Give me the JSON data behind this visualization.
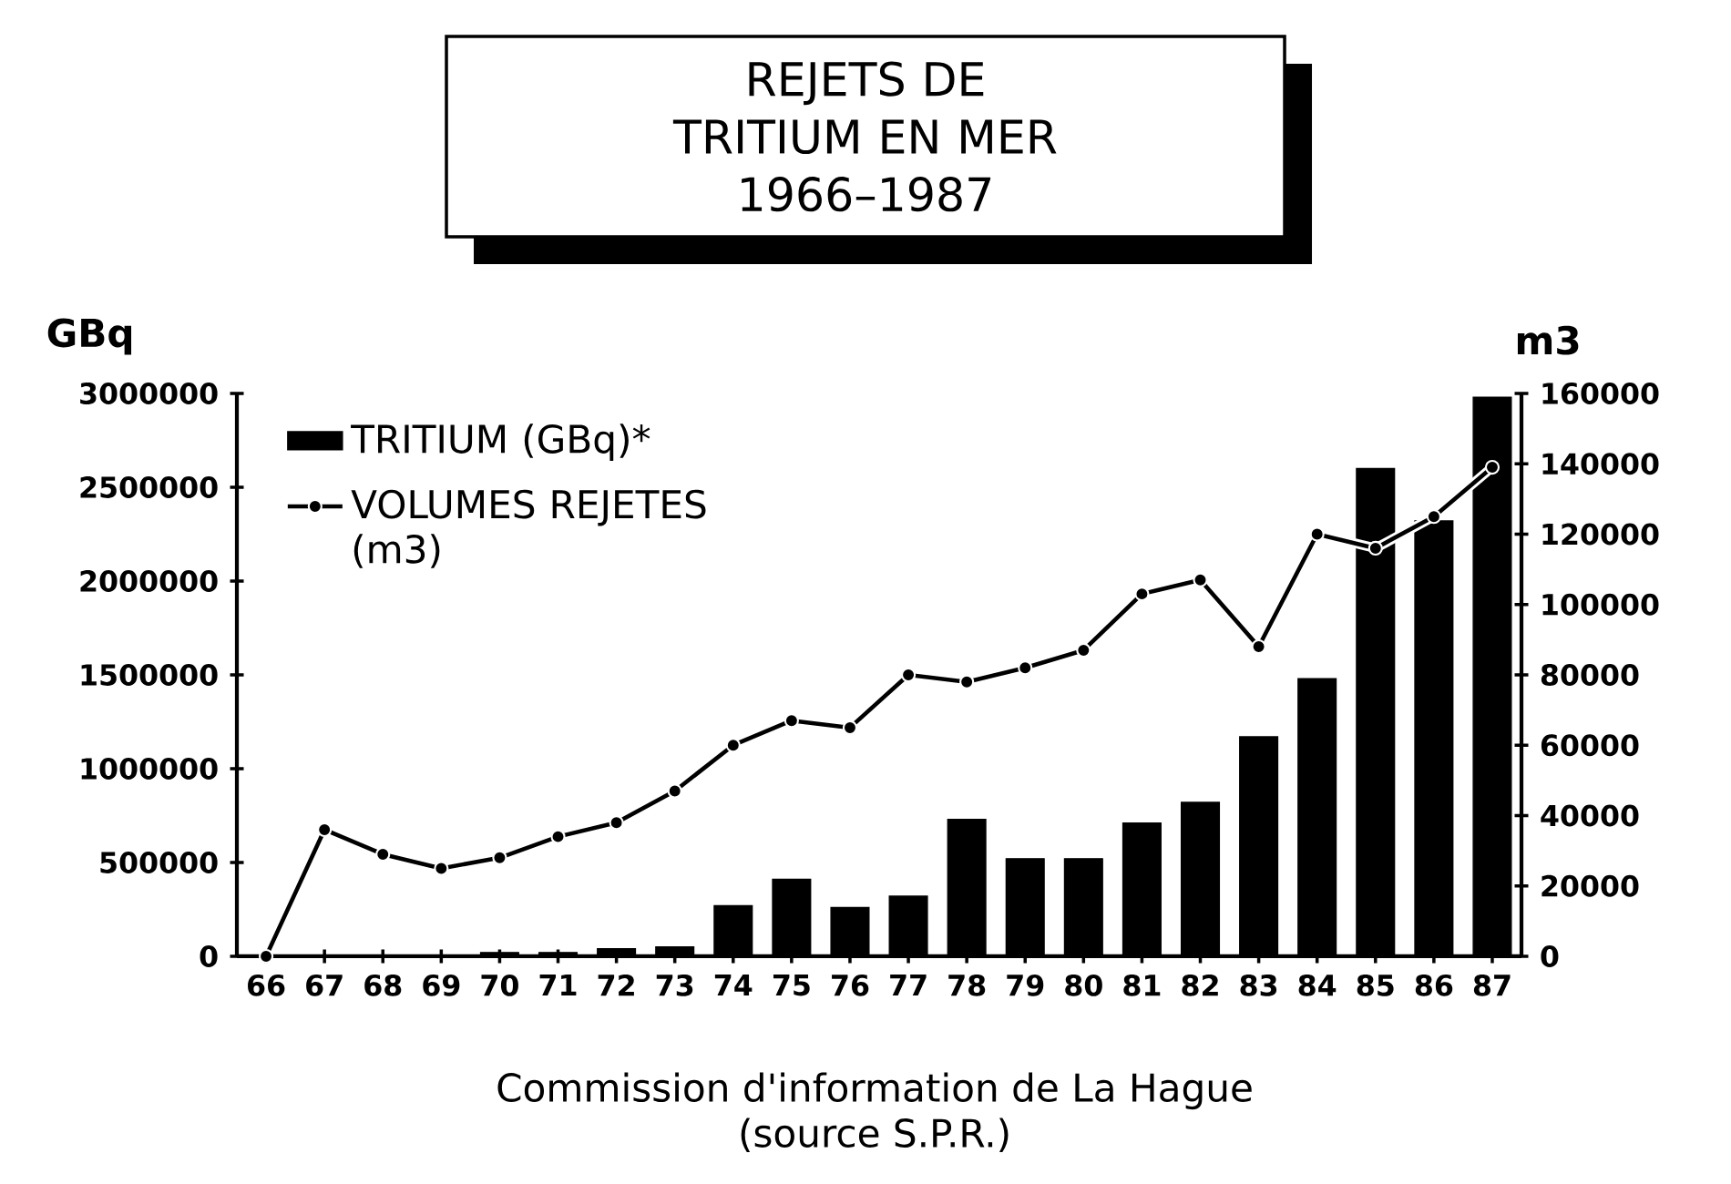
{
  "chart_data": {
    "type": "bar",
    "title": "REJETS DE TRITIUM EN MER",
    "subtitle": "1966–1987",
    "ylabel": "GBq",
    "y2label": "m3",
    "categories": [
      "66",
      "67",
      "68",
      "69",
      "70",
      "71",
      "72",
      "73",
      "74",
      "75",
      "76",
      "77",
      "78",
      "79",
      "80",
      "81",
      "82",
      "83",
      "84",
      "85",
      "86",
      "87"
    ],
    "series": [
      {
        "name": "TRITIUM  (GBq)*",
        "color": "#000000",
        "values": [
          0,
          0,
          0,
          0,
          20000,
          20000,
          40000,
          50000,
          270000,
          410000,
          260000,
          320000,
          730000,
          520000,
          520000,
          710000,
          820000,
          1170000,
          1480000,
          2600000,
          2320000,
          2980000
        ]
      },
      {
        "name": "VOLUMES REJETES (m3)",
        "type": "line",
        "axis": "y2",
        "marker": "circle",
        "color": "#000000",
        "values": [
          0,
          36000,
          29000,
          25000,
          28000,
          34000,
          38000,
          47000,
          60000,
          67000,
          65000,
          80000,
          78000,
          82000,
          87000,
          103000,
          107000,
          88000,
          120000,
          116000,
          125000,
          139000
        ]
      }
    ],
    "ylim": [
      0,
      3000000
    ],
    "yticks": [
      0,
      500000,
      1000000,
      1500000,
      2000000,
      2500000,
      3000000
    ],
    "y2lim": [
      0,
      160000
    ],
    "y2ticks": [
      0,
      20000,
      40000,
      60000,
      80000,
      100000,
      120000,
      140000,
      160000
    ],
    "legend": "top left",
    "annotations": [
      "Commission d'information de La Hague",
      "(source S.P.R.)"
    ]
  }
}
